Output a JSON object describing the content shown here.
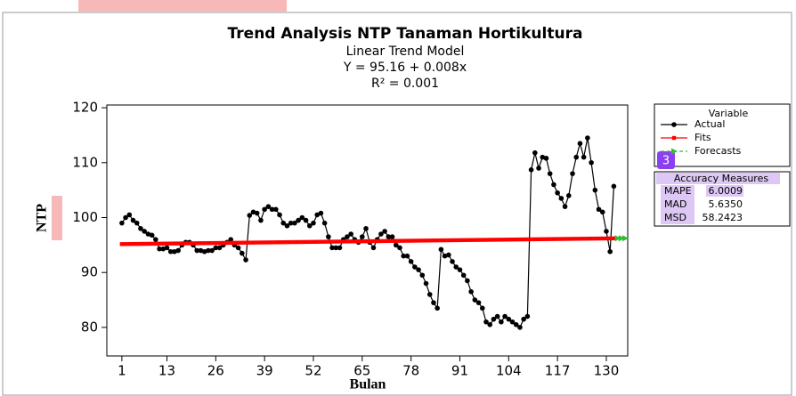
{
  "chart_data": {
    "type": "line",
    "title": "Trend Analysis NTP Tanaman Hortikultura",
    "subtitle": [
      "Linear Trend Model",
      "Y = 95.16 + 0.008x",
      "R² = 0.001"
    ],
    "x_label": "Bulan",
    "y_label": "NTP",
    "x": [
      1,
      2,
      3,
      4,
      5,
      6,
      7,
      8,
      9,
      10,
      11,
      12,
      13,
      14,
      15,
      16,
      17,
      18,
      19,
      20,
      21,
      22,
      23,
      24,
      25,
      26,
      27,
      28,
      29,
      30,
      31,
      32,
      33,
      34,
      35,
      36,
      37,
      38,
      39,
      40,
      41,
      42,
      43,
      44,
      45,
      46,
      47,
      48,
      49,
      50,
      51,
      52,
      53,
      54,
      55,
      56,
      57,
      58,
      59,
      60,
      61,
      62,
      63,
      64,
      65,
      66,
      67,
      68,
      69,
      70,
      71,
      72,
      73,
      74,
      75,
      76,
      77,
      78,
      79,
      80,
      81,
      82,
      83,
      84,
      85,
      86,
      87,
      88,
      89,
      90,
      91,
      92,
      93,
      94,
      95,
      96,
      97,
      98,
      99,
      100,
      101,
      102,
      103,
      104,
      105,
      106,
      107,
      108,
      109,
      110,
      111,
      112,
      113,
      114,
      115,
      116,
      117,
      118,
      119,
      120,
      121,
      122,
      123,
      124,
      125,
      126,
      127,
      128,
      129,
      130,
      131,
      132
    ],
    "series": [
      {
        "name": "Actual",
        "color": "#000000",
        "marker": "circle",
        "values": [
          99,
          100,
          100.5,
          99.5,
          99,
          98,
          97.5,
          97,
          96.8,
          96,
          94.3,
          94.3,
          94.5,
          93.8,
          93.8,
          94,
          95,
          95.5,
          95.5,
          95,
          94,
          94,
          93.8,
          94,
          94,
          94.5,
          94.5,
          95,
          95.5,
          96,
          95,
          94.5,
          93.5,
          92.3,
          100.4,
          101,
          100.8,
          99.5,
          101.5,
          102,
          101.5,
          101.5,
          100.5,
          99,
          98.5,
          99,
          99,
          99.5,
          100,
          99.5,
          98.5,
          99,
          100.5,
          100.8,
          99,
          96.5,
          94.5,
          94.5,
          94.5,
          96,
          96.5,
          97,
          96,
          95.5,
          96.5,
          98,
          95.5,
          94.5,
          96,
          97,
          97.5,
          96.5,
          96.5,
          95,
          94.5,
          93,
          93,
          92,
          91,
          90.5,
          89.5,
          88,
          86,
          84.5,
          83.5,
          94.2,
          93,
          93.2,
          92,
          91,
          90.5,
          89.5,
          88.5,
          86.5,
          85,
          84.5,
          83.5,
          81,
          80.5,
          81.5,
          82,
          81,
          82,
          81.5,
          81,
          80.5,
          80,
          81.5,
          82,
          108.7,
          111.8,
          109,
          111,
          110.8,
          108,
          106,
          104.5,
          103.5,
          102,
          104,
          108,
          111,
          113.5,
          111,
          114.5,
          110,
          105,
          101.5,
          101,
          97.5,
          93.8,
          105.7
        ]
      },
      {
        "name": "Fits",
        "color": "#ff0000",
        "marker": "square",
        "values": [
          95.168,
          95.176,
          95.184,
          95.192,
          95.2,
          95.208,
          95.216,
          95.224,
          95.232,
          95.24,
          95.248,
          95.256,
          95.264,
          95.272,
          95.28,
          95.288,
          95.296,
          95.304,
          95.312,
          95.32,
          95.328,
          95.336,
          95.344,
          95.352,
          95.36,
          95.368,
          95.376,
          95.384,
          95.392,
          95.4,
          95.408,
          95.416,
          95.424,
          95.432,
          95.44,
          95.448,
          95.456,
          95.464,
          95.472,
          95.48,
          95.488,
          95.496,
          95.504,
          95.512,
          95.52,
          95.528,
          95.536,
          95.544,
          95.552,
          95.56,
          95.568,
          95.576,
          95.584,
          95.592,
          95.6,
          95.608,
          95.616,
          95.624,
          95.632,
          95.64,
          95.648,
          95.656,
          95.664,
          95.672,
          95.68,
          95.688,
          95.696,
          95.704,
          95.712,
          95.72,
          95.728,
          95.736,
          95.744,
          95.752,
          95.76,
          95.768,
          95.776,
          95.784,
          95.792,
          95.8,
          95.808,
          95.816,
          95.824,
          95.832,
          95.84,
          95.848,
          95.856,
          95.864,
          95.872,
          95.88,
          95.888,
          95.896,
          95.904,
          95.912,
          95.92,
          95.928,
          95.936,
          95.944,
          95.952,
          95.96,
          95.968,
          95.976,
          95.984,
          95.992,
          96,
          96.008,
          96.016,
          96.024,
          96.032,
          96.04,
          96.048,
          96.056,
          96.064,
          96.072,
          96.08,
          96.088,
          96.096,
          96.104,
          96.112,
          96.12,
          96.128,
          96.136,
          96.144,
          96.152,
          96.16,
          96.168,
          96.176,
          96.184,
          96.192,
          96.2,
          96.208,
          96.216
        ]
      },
      {
        "name": "Forecasts",
        "color": "#33bb33",
        "marker": "triangle",
        "dashed": true,
        "x": [
          133,
          134,
          135
        ],
        "values": [
          96.224,
          96.232,
          96.24
        ]
      }
    ],
    "xlim": [
      -3,
      135.7
    ],
    "ylim": [
      74.8,
      120.5
    ],
    "xticks": [
      1,
      13,
      26,
      39,
      52,
      65,
      78,
      91,
      104,
      117,
      130
    ],
    "yticks": [
      80,
      90,
      100,
      110,
      120
    ],
    "legend_title": "Variable",
    "badge": "3",
    "accuracy": {
      "title": "Accuracy Measures",
      "rows": [
        [
          "MAPE",
          "6.0009"
        ],
        [
          "MAD",
          "5.6350"
        ],
        [
          "MSD",
          "58.2423"
        ]
      ]
    }
  }
}
